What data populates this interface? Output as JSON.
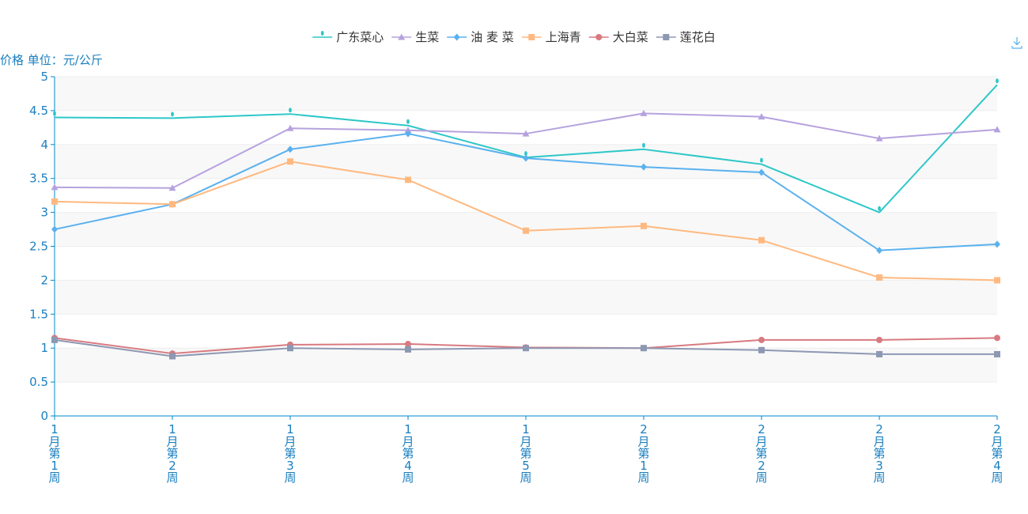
{
  "chart_data": {
    "type": "line",
    "title": "",
    "ylabel": "价格 单位：元/公斤",
    "xlabel": "",
    "ylim": [
      0,
      5
    ],
    "yticks": [
      "0",
      "0.5",
      "1",
      "1.5",
      "2",
      "2.5",
      "3",
      "3.5",
      "4",
      "4.5",
      "5"
    ],
    "categories": [
      "1月第1周",
      "1月第2周",
      "1月第3周",
      "1月第4周",
      "1月第5周",
      "2月第1周",
      "2月第2周",
      "2月第3周",
      "2月第4周"
    ],
    "legend_position": "top-center",
    "grid": true,
    "series": [
      {
        "name": "广东菜心",
        "color": "#2ec7c9",
        "marker": "pin",
        "values": [
          4.4,
          4.39,
          4.45,
          4.28,
          3.81,
          3.93,
          3.71,
          3.0,
          4.88
        ]
      },
      {
        "name": "生菜",
        "color": "#b6a2de",
        "marker": "triangle",
        "values": [
          3.37,
          3.36,
          4.24,
          4.21,
          4.16,
          4.46,
          4.41,
          4.09,
          4.22
        ]
      },
      {
        "name": "油 麦 菜",
        "color": "#5ab1ef",
        "marker": "diamond",
        "values": [
          2.75,
          3.12,
          3.93,
          4.16,
          3.8,
          3.67,
          3.59,
          2.44,
          2.53
        ]
      },
      {
        "name": "上海青",
        "color": "#ffb980",
        "marker": "square",
        "values": [
          3.16,
          3.12,
          3.75,
          3.48,
          2.73,
          2.8,
          2.59,
          2.04,
          2.0
        ]
      },
      {
        "name": "大白菜",
        "color": "#d87a80",
        "marker": "circle",
        "values": [
          1.15,
          0.92,
          1.05,
          1.06,
          1.01,
          1.0,
          1.12,
          1.12,
          1.15
        ]
      },
      {
        "name": "莲花白",
        "color": "#8d98b3",
        "marker": "square",
        "values": [
          1.12,
          0.88,
          1.0,
          0.98,
          1.0,
          1.0,
          0.97,
          0.91,
          0.91
        ]
      }
    ]
  },
  "toolbar": {
    "download_icon": "download-icon"
  }
}
